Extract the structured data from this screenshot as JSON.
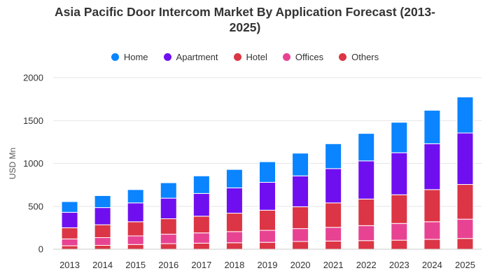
{
  "chart_data": {
    "type": "bar",
    "stacked": true,
    "title_line1": "Asia Pacific Door Intercom Market By Application Forecast (2013-",
    "title_line2": "2025)",
    "ylabel": "USD Mn",
    "xlabel": "",
    "ylim": [
      0,
      2000
    ],
    "yticks": [
      "0",
      "500",
      "1000",
      "1500",
      "2000"
    ],
    "ytick_values": [
      0,
      500,
      1000,
      1500,
      2000
    ],
    "grid": true,
    "legend_position": "top-center",
    "categories": [
      "2013",
      "2014",
      "2015",
      "2016",
      "2017",
      "2018",
      "2019",
      "2020",
      "2021",
      "2022",
      "2023",
      "2024",
      "2025"
    ],
    "series": [
      {
        "name": "Others",
        "color": "#dc3545",
        "values": [
          40,
          45,
          55,
          65,
          70,
          75,
          80,
          90,
          95,
          100,
          105,
          115,
          125
        ]
      },
      {
        "name": "Offices",
        "color": "#e84393",
        "values": [
          80,
          90,
          100,
          110,
          120,
          130,
          140,
          150,
          160,
          175,
          195,
          205,
          225
        ]
      },
      {
        "name": "Hotel",
        "color": "#dc3545",
        "values": [
          130,
          150,
          165,
          180,
          195,
          215,
          235,
          255,
          285,
          310,
          335,
          375,
          405
        ]
      },
      {
        "name": "Apartment",
        "color": "#6f0ff0",
        "values": [
          180,
          200,
          220,
          240,
          265,
          295,
          325,
          360,
          400,
          445,
          490,
          535,
          600
        ]
      },
      {
        "name": "Home",
        "color": "#0a84ff",
        "values": [
          125,
          140,
          155,
          180,
          205,
          215,
          240,
          265,
          290,
          320,
          355,
          390,
          420
        ]
      }
    ],
    "legend_order": [
      "Home",
      "Apartment",
      "Hotel",
      "Offices",
      "Others"
    ]
  }
}
